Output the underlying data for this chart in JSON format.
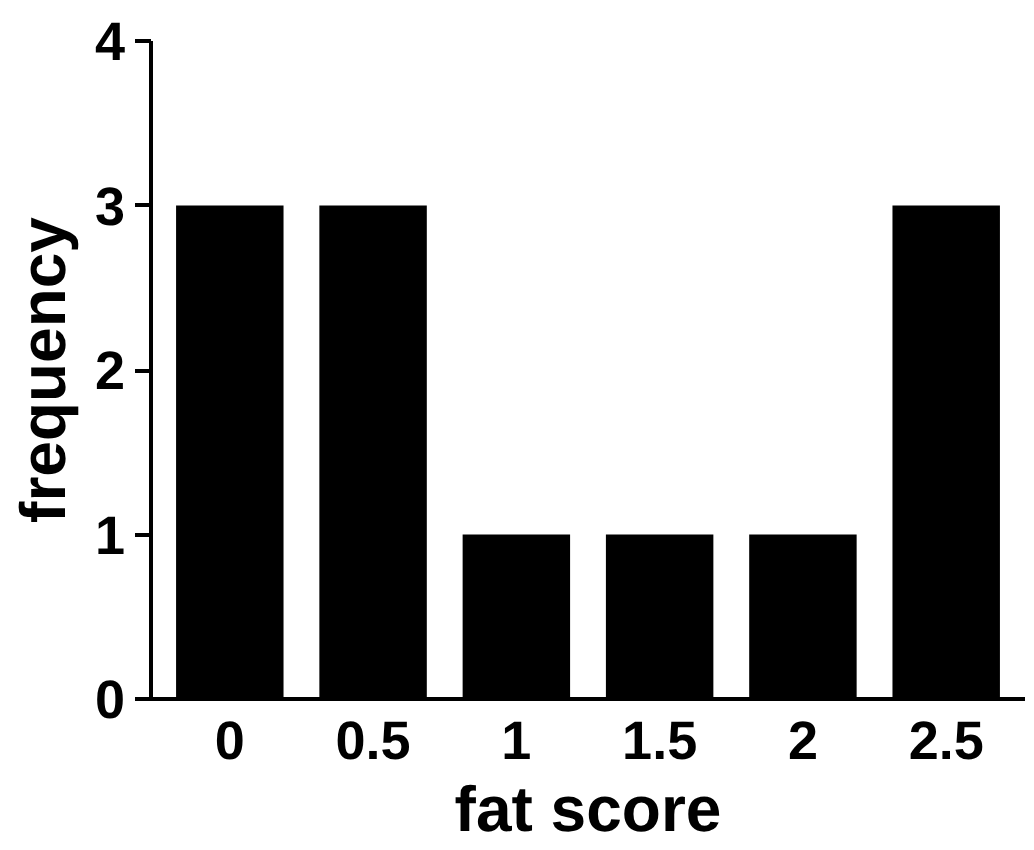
{
  "chart_data": {
    "type": "bar",
    "xlabel": "fat score",
    "ylabel": "frequency",
    "categories": [
      "0",
      "0.5",
      "1",
      "1.5",
      "2",
      "2.5"
    ],
    "values": [
      3,
      3,
      1,
      1,
      1,
      3
    ],
    "color": "#000000",
    "ylim": [
      0,
      4
    ],
    "yticks": [
      0,
      1,
      2,
      3,
      4
    ],
    "grid": false
  }
}
